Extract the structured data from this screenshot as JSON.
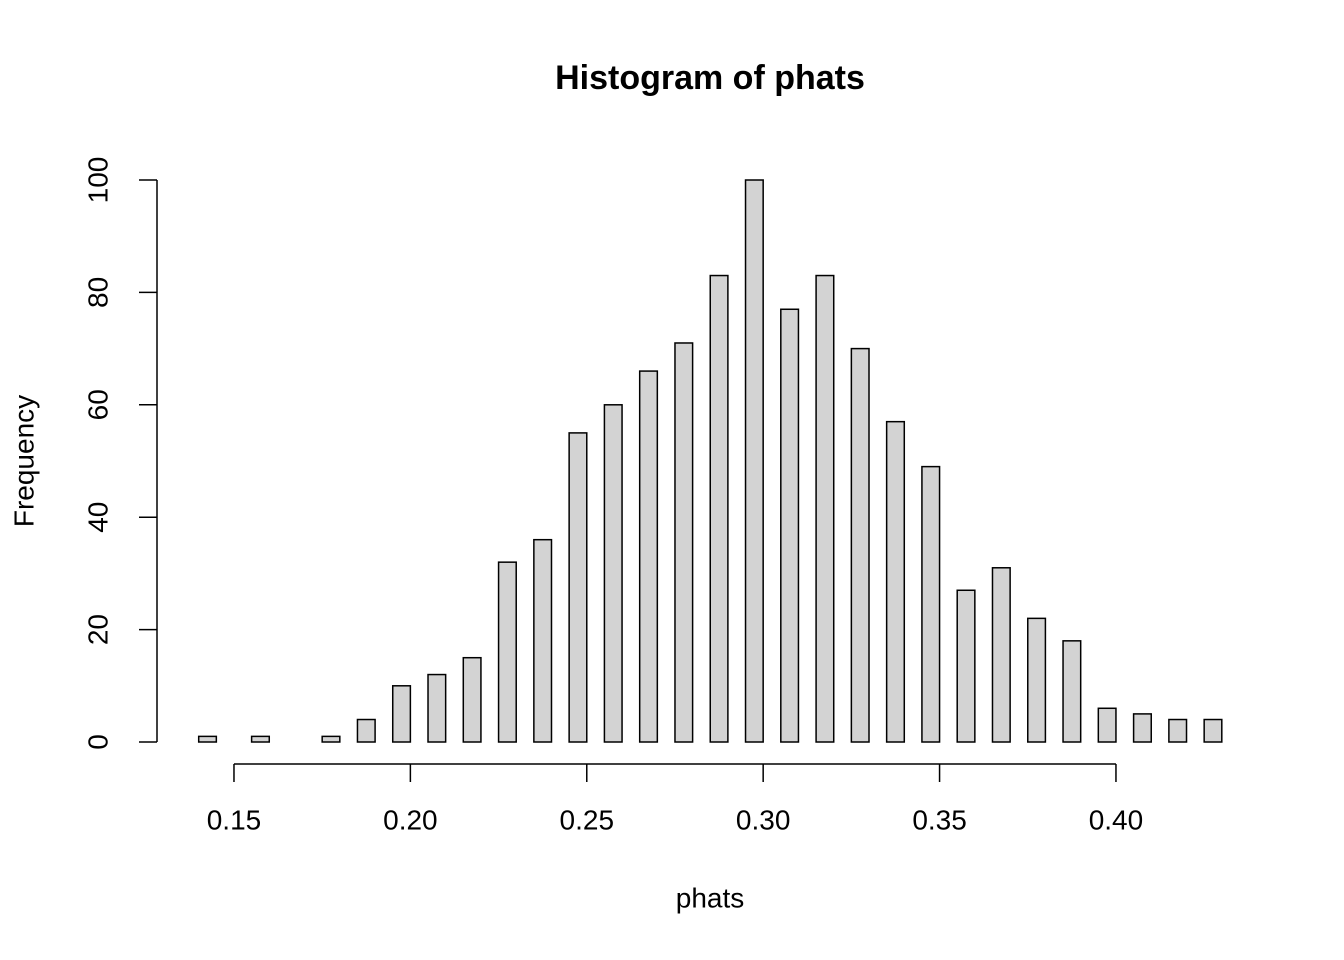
{
  "chart_data": {
    "type": "histogram",
    "title": "Histogram of phats",
    "x_label": "phats",
    "y_label": "Frequency",
    "bins": [
      0.14,
      0.145,
      0.15,
      0.155,
      0.16,
      0.165,
      0.17,
      0.175,
      0.18,
      0.185,
      0.19,
      0.195,
      0.2,
      0.205,
      0.21,
      0.215,
      0.22,
      0.225,
      0.23,
      0.235,
      0.24,
      0.245,
      0.25,
      0.255,
      0.26,
      0.265,
      0.27,
      0.275,
      0.28,
      0.285,
      0.29,
      0.295,
      0.3,
      0.305,
      0.31,
      0.315,
      0.32,
      0.325,
      0.33,
      0.335,
      0.34,
      0.345,
      0.35,
      0.355,
      0.36,
      0.365,
      0.37,
      0.375,
      0.38,
      0.385,
      0.39,
      0.395,
      0.4,
      0.405,
      0.41,
      0.415,
      0.42,
      0.425,
      0.43
    ],
    "values": [
      1,
      0,
      0,
      1,
      0,
      0,
      0,
      1,
      0,
      4,
      0,
      10,
      0,
      12,
      0,
      15,
      0,
      32,
      0,
      36,
      0,
      55,
      0,
      60,
      0,
      66,
      0,
      71,
      0,
      83,
      0,
      100,
      0,
      77,
      0,
      83,
      0,
      70,
      0,
      57,
      0,
      49,
      0,
      27,
      0,
      31,
      0,
      22,
      0,
      18,
      0,
      6,
      0,
      5,
      0,
      4,
      0,
      4
    ],
    "color": "#d3d3d3",
    "xlim": [
      0.14,
      0.43
    ],
    "ylim": [
      0,
      100
    ],
    "xticks": [
      0.15,
      {
        "value": 0.2,
        "label": "0.20"
      },
      0.25,
      {
        "value": 0.3,
        "label": "0.30"
      },
      0.35,
      {
        "value": 0.4,
        "label": "0.40"
      }
    ],
    "yticks": [
      0,
      20,
      40,
      60,
      80,
      100
    ]
  }
}
